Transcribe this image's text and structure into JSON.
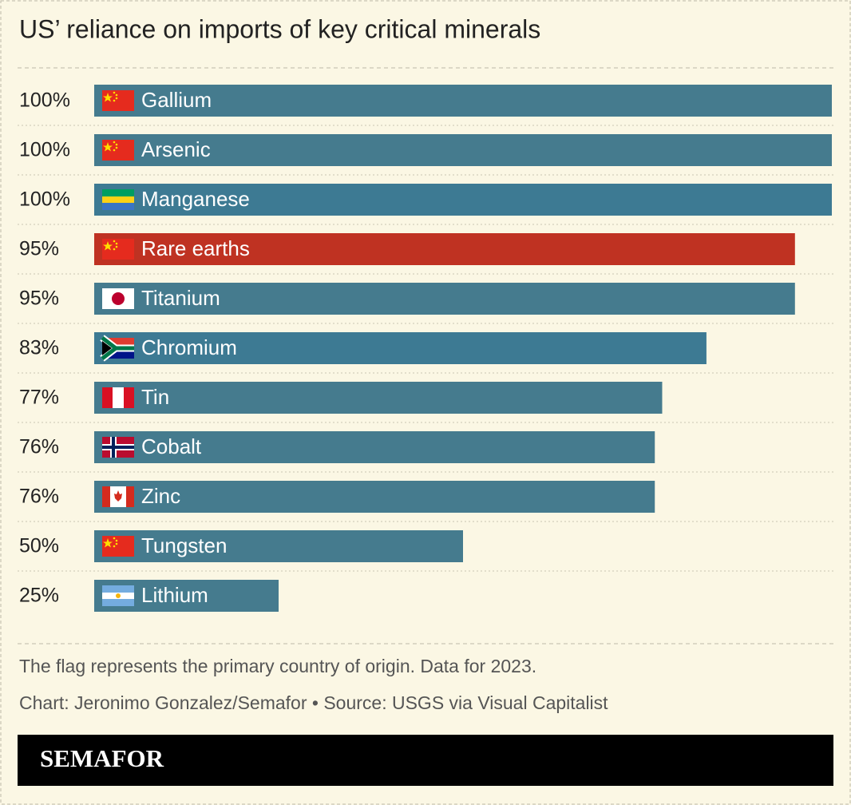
{
  "chart_data": {
    "type": "bar",
    "orientation": "horizontal",
    "title": "US’ reliance on imports of key critical minerals",
    "categories": [
      "Gallium",
      "Arsenic",
      "Manganese",
      "Rare earths",
      "Titanium",
      "Chromium",
      "Tin",
      "Cobalt",
      "Zinc",
      "Tungsten",
      "Lithium"
    ],
    "values": [
      100,
      100,
      100,
      95,
      95,
      83,
      77,
      76,
      76,
      50,
      25
    ],
    "value_labels": [
      "100%",
      "100%",
      "100%",
      "95%",
      "95%",
      "83%",
      "77%",
      "76%",
      "76%",
      "50%",
      "25%"
    ],
    "colors": [
      "#457b8e",
      "#457b8e",
      "#3d7a93",
      "#bf3222",
      "#457b8e",
      "#3d7a93",
      "#457b8e",
      "#457b8e",
      "#457b8e",
      "#457b8e",
      "#457b8e"
    ],
    "xlim": [
      0,
      100
    ],
    "note": "The flag represents the primary country of origin. Data for 2023.",
    "source": "Chart: Jeronimo Gonzalez/Semafor • Source: USGS via Visual Capitalist",
    "brand": "SEMAFOR"
  }
}
